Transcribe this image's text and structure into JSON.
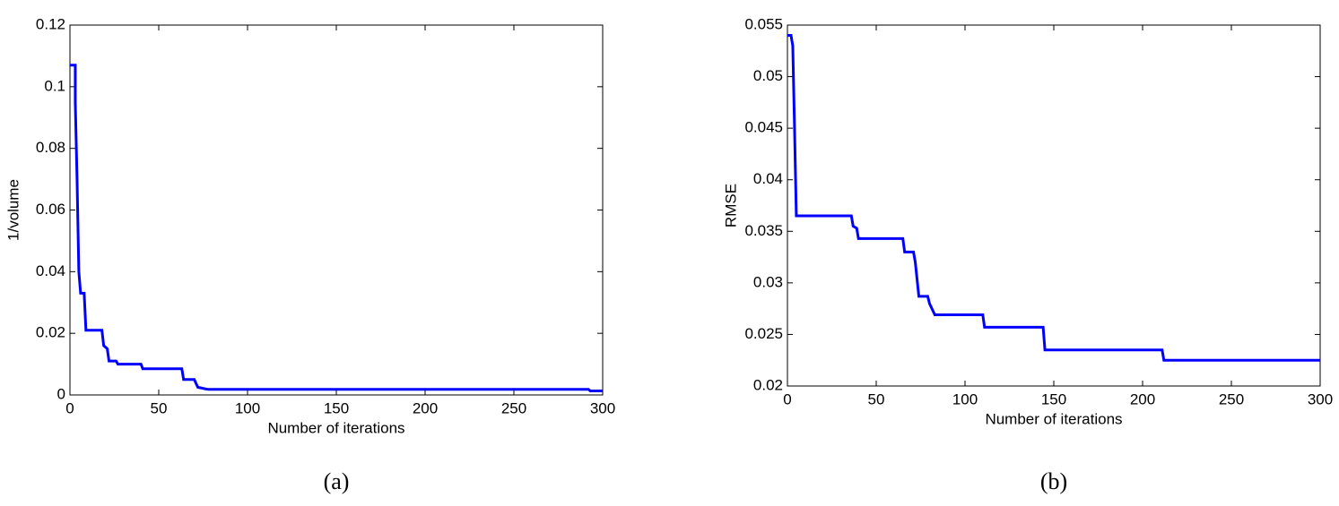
{
  "chart_data": [
    {
      "type": "line",
      "caption": "(a)",
      "xlabel": "Number of iterations",
      "ylabel": "1/volume",
      "xlim": [
        0,
        300
      ],
      "xticks": [
        0,
        50,
        100,
        150,
        200,
        250,
        300
      ],
      "ylim": [
        0,
        0.12
      ],
      "yticks": [
        0,
        0.02,
        0.04,
        0.06,
        0.08,
        0.1,
        0.12
      ],
      "grid": false,
      "series": [
        {
          "color": "#0000ff",
          "x": [
            0,
            3,
            3,
            4,
            5,
            6,
            8,
            9,
            18,
            19,
            21,
            22,
            26,
            27,
            40,
            41,
            63,
            64,
            70,
            72,
            76,
            78,
            292,
            293,
            300
          ],
          "values": [
            0.107,
            0.107,
            0.095,
            0.07,
            0.04,
            0.033,
            0.033,
            0.021,
            0.021,
            0.016,
            0.015,
            0.011,
            0.011,
            0.01,
            0.01,
            0.0085,
            0.0085,
            0.005,
            0.005,
            0.0025,
            0.002,
            0.0018,
            0.0018,
            0.0013,
            0.0013
          ]
        }
      ]
    },
    {
      "type": "line",
      "caption": "(b)",
      "xlabel": "Number of iterations",
      "ylabel": "RMSE",
      "xlim": [
        0,
        300
      ],
      "xticks": [
        0,
        50,
        100,
        150,
        200,
        250,
        300
      ],
      "ylim": [
        0.02,
        0.055
      ],
      "yticks": [
        0.02,
        0.025,
        0.03,
        0.035,
        0.04,
        0.045,
        0.05,
        0.055
      ],
      "grid": false,
      "series": [
        {
          "color": "#0000ff",
          "x": [
            0,
            2,
            3,
            4,
            5,
            36,
            37,
            39,
            40,
            65,
            66,
            71,
            72,
            74,
            79,
            80,
            83,
            110,
            111,
            144,
            145,
            211,
            212,
            300
          ],
          "values": [
            0.054,
            0.054,
            0.053,
            0.045,
            0.0365,
            0.0365,
            0.0355,
            0.0353,
            0.0343,
            0.0343,
            0.033,
            0.033,
            0.032,
            0.0287,
            0.0287,
            0.028,
            0.0269,
            0.0269,
            0.0257,
            0.0257,
            0.0235,
            0.0235,
            0.0225,
            0.0225
          ]
        }
      ]
    }
  ]
}
